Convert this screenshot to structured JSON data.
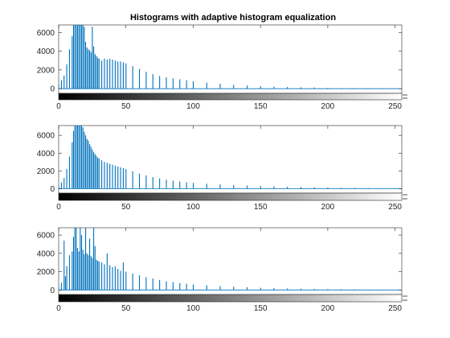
{
  "chart_data": [
    {
      "type": "bar",
      "title": "Histograms with adaptive histogram equalization",
      "xlabel": "",
      "ylabel": "",
      "xlim": [
        0,
        255
      ],
      "ylim": [
        -500,
        6800
      ],
      "xticks": [
        0,
        50,
        100,
        150,
        200,
        250
      ],
      "yticks": [
        0,
        2000,
        4000,
        6000
      ],
      "bar_color": "#0072BD",
      "colorbar": "grayscale ramp 0 to 255 under the axis",
      "x": [
        0,
        2,
        4,
        6,
        8,
        10,
        11,
        12,
        13,
        14,
        15,
        16,
        17,
        18,
        19,
        20,
        21,
        22,
        23,
        24,
        25,
        26,
        27,
        28,
        29,
        30,
        32,
        34,
        36,
        38,
        40,
        42,
        44,
        46,
        48,
        50,
        55,
        60,
        65,
        70,
        75,
        80,
        85,
        90,
        95,
        100,
        110,
        120,
        130,
        140,
        150,
        160,
        170,
        180,
        190,
        200,
        210,
        220,
        230,
        240,
        250
      ],
      "values": [
        500,
        900,
        1400,
        2600,
        4200,
        5600,
        6800,
        6800,
        6800,
        6800,
        6800,
        6800,
        6800,
        6800,
        6600,
        5000,
        4400,
        4200,
        4100,
        3900,
        6600,
        4500,
        3700,
        3500,
        3300,
        3200,
        3000,
        3200,
        3100,
        3200,
        3100,
        3000,
        2900,
        2900,
        2800,
        2700,
        2400,
        2100,
        1800,
        1550,
        1350,
        1200,
        1100,
        1000,
        900,
        780,
        640,
        520,
        420,
        340,
        270,
        220,
        180,
        150,
        120,
        95,
        75,
        60,
        45,
        35,
        25
      ]
    },
    {
      "type": "bar",
      "title": "",
      "xlabel": "",
      "ylabel": "",
      "xlim": [
        0,
        255
      ],
      "ylim": [
        -500,
        7100
      ],
      "xticks": [
        0,
        50,
        100,
        150,
        200,
        250
      ],
      "yticks": [
        0,
        2000,
        4000,
        6000
      ],
      "bar_color": "#0072BD",
      "colorbar": "grayscale ramp 0 to 255 under the axis",
      "x": [
        0,
        2,
        4,
        6,
        8,
        10,
        11,
        12,
        13,
        14,
        15,
        16,
        17,
        18,
        19,
        20,
        21,
        22,
        23,
        24,
        25,
        26,
        27,
        28,
        29,
        30,
        32,
        34,
        36,
        38,
        40,
        42,
        44,
        46,
        48,
        50,
        55,
        60,
        65,
        70,
        75,
        80,
        85,
        90,
        95,
        100,
        110,
        120,
        130,
        140,
        150,
        160,
        170,
        180,
        190,
        200,
        210,
        220,
        230,
        240,
        250
      ],
      "values": [
        300,
        700,
        1200,
        2200,
        3600,
        5200,
        6500,
        7100,
        7100,
        7100,
        7100,
        7100,
        7100,
        6900,
        6400,
        6000,
        5600,
        5400,
        5000,
        4700,
        4400,
        4100,
        3900,
        3700,
        3500,
        3400,
        3200,
        3000,
        2900,
        2800,
        2700,
        2600,
        2500,
        2400,
        2300,
        2200,
        1950,
        1700,
        1500,
        1300,
        1150,
        1000,
        900,
        800,
        720,
        650,
        560,
        480,
        420,
        360,
        300,
        260,
        220,
        190,
        160,
        140,
        110,
        90,
        70,
        50,
        35
      ]
    },
    {
      "type": "bar",
      "title": "",
      "xlabel": "",
      "ylabel": "",
      "xlim": [
        0,
        255
      ],
      "ylim": [
        -500,
        6800
      ],
      "xticks": [
        0,
        50,
        100,
        150,
        200,
        250
      ],
      "yticks": [
        0,
        2000,
        4000,
        6000
      ],
      "bar_color": "#0072BD",
      "colorbar": "grayscale ramp 0 to 255 under the axis",
      "x": [
        0,
        2,
        4,
        5,
        6,
        8,
        10,
        11,
        12,
        13,
        14,
        15,
        16,
        17,
        18,
        19,
        20,
        21,
        22,
        23,
        24,
        25,
        26,
        27,
        28,
        29,
        30,
        32,
        34,
        36,
        38,
        40,
        42,
        44,
        46,
        48,
        50,
        55,
        60,
        65,
        70,
        75,
        80,
        85,
        90,
        95,
        100,
        110,
        120,
        130,
        140,
        150,
        160,
        170,
        180,
        190,
        200,
        210,
        220,
        230,
        240,
        250
      ],
      "values": [
        300,
        800,
        5400,
        1500,
        2600,
        3800,
        4200,
        5800,
        6800,
        6800,
        4600,
        4200,
        6800,
        6000,
        4400,
        3900,
        6800,
        4000,
        3800,
        5600,
        3700,
        3500,
        6800,
        4800,
        3300,
        3200,
        3100,
        3000,
        2800,
        4000,
        2700,
        2500,
        2600,
        2300,
        2100,
        3000,
        2000,
        1800,
        1600,
        1400,
        1250,
        1100,
        950,
        850,
        760,
        680,
        600,
        500,
        420,
        350,
        290,
        240,
        200,
        170,
        140,
        120,
        100,
        80,
        65,
        50,
        40,
        30
      ]
    }
  ]
}
